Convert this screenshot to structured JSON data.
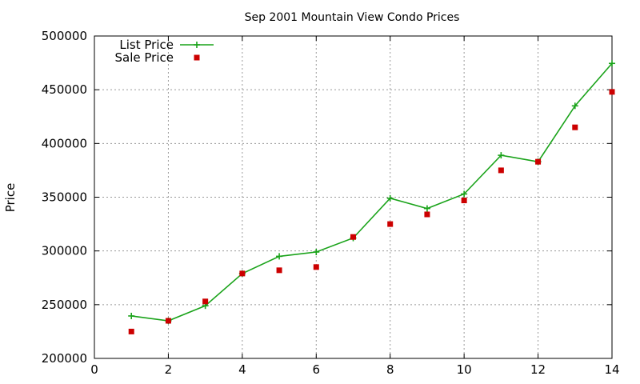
{
  "chart_data": {
    "type": "line",
    "title": "Sep 2001 Mountain View Condo Prices",
    "xlabel": "",
    "ylabel": "Price",
    "xlim": [
      0,
      14
    ],
    "ylim": [
      200000,
      500000
    ],
    "xticks": [
      0,
      2,
      4,
      6,
      8,
      10,
      12,
      14
    ],
    "yticks": [
      200000,
      250000,
      300000,
      350000,
      400000,
      450000,
      500000
    ],
    "grid": true,
    "legend_position": "top-left",
    "series": [
      {
        "name": "List Price",
        "style": "lines+points",
        "marker": "plus",
        "color": "#1aa31a",
        "x": [
          1,
          2,
          3,
          4,
          5,
          6,
          7,
          8,
          9,
          10,
          11,
          12,
          13,
          14
        ],
        "y": [
          239500,
          235000,
          249000,
          279000,
          295000,
          299000,
          312000,
          349000,
          339500,
          353000,
          389000,
          383000,
          435000,
          474500
        ]
      },
      {
        "name": "Sale Price",
        "style": "points",
        "marker": "square",
        "color": "#cc0000",
        "x": [
          1,
          2,
          3,
          4,
          5,
          6,
          7,
          8,
          9,
          10,
          11,
          12,
          13,
          14
        ],
        "y": [
          225000,
          235000,
          253000,
          279000,
          282000,
          285000,
          313000,
          325000,
          334000,
          347000,
          375000,
          383000,
          415000,
          448000
        ]
      }
    ]
  }
}
